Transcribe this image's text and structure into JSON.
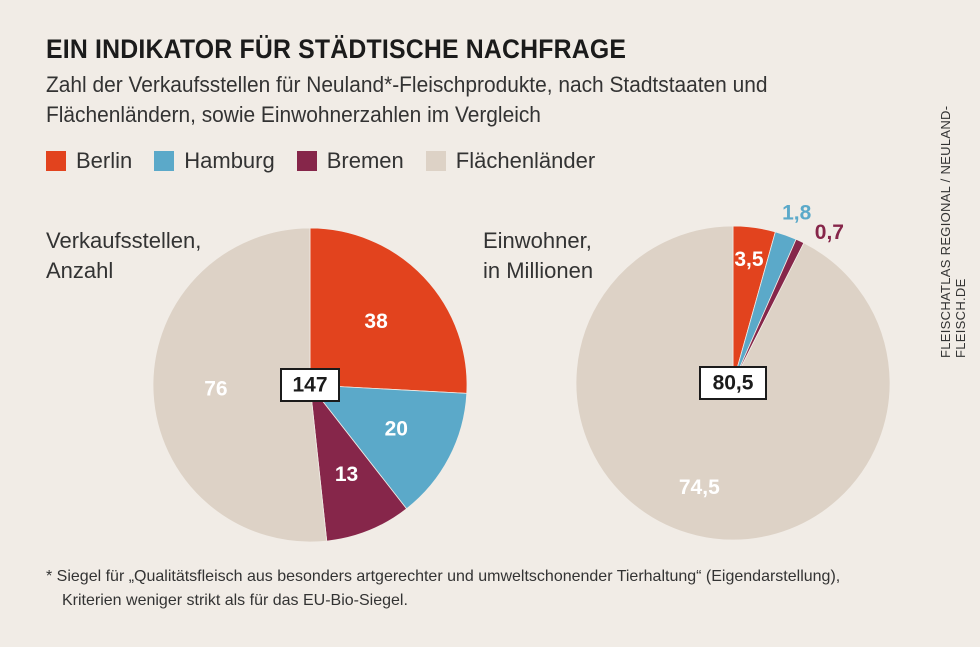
{
  "title": "EIN INDIKATOR FÜR STÄDTISCHE NACHFRAGE",
  "subtitle": "Zahl der Verkaufsstellen für Neuland*-Fleischprodukte, nach Stadtstaaten und Flächenländern, sowie Einwohnerzahlen im Vergleich",
  "credit": "FLEISCHATLAS REGIONAL / NEULAND-FLEISCH.DE",
  "footnote": {
    "line1": "* Siegel für „Qualitätsfleisch aus besonders artgerechter und umweltschonender Tierhaltung“ (Eigendarstellung),",
    "line2": "Kriterien weniger strikt als für das EU-Bio-Siegel."
  },
  "legend": [
    {
      "label": "Berlin",
      "color": "#e2431e"
    },
    {
      "label": "Hamburg",
      "color": "#5ba9c9"
    },
    {
      "label": "Bremen",
      "color": "#86264a"
    },
    {
      "label": "Flächenländer",
      "color": "#ddd2c6"
    }
  ],
  "chart_data": [
    {
      "type": "pie",
      "title": "Verkaufsstellen, Anzahl",
      "title_lines": [
        "Verkaufsstellen,",
        "Anzahl"
      ],
      "total_label": "147",
      "categories": [
        "Berlin",
        "Hamburg",
        "Bremen",
        "Flächenländer"
      ],
      "values": [
        38,
        20,
        13,
        76
      ],
      "labels": [
        "38",
        "20",
        "13",
        "76"
      ]
    },
    {
      "type": "pie",
      "title": "Einwohner, in Millionen",
      "title_lines": [
        "Einwohner,",
        "in Millionen"
      ],
      "total_label": "80,5",
      "categories": [
        "Berlin",
        "Hamburg",
        "Bremen",
        "Flächenländer"
      ],
      "values": [
        3.5,
        1.8,
        0.7,
        74.5
      ],
      "labels": [
        "3,5",
        "1,8",
        "0,7",
        "74,5"
      ]
    }
  ]
}
